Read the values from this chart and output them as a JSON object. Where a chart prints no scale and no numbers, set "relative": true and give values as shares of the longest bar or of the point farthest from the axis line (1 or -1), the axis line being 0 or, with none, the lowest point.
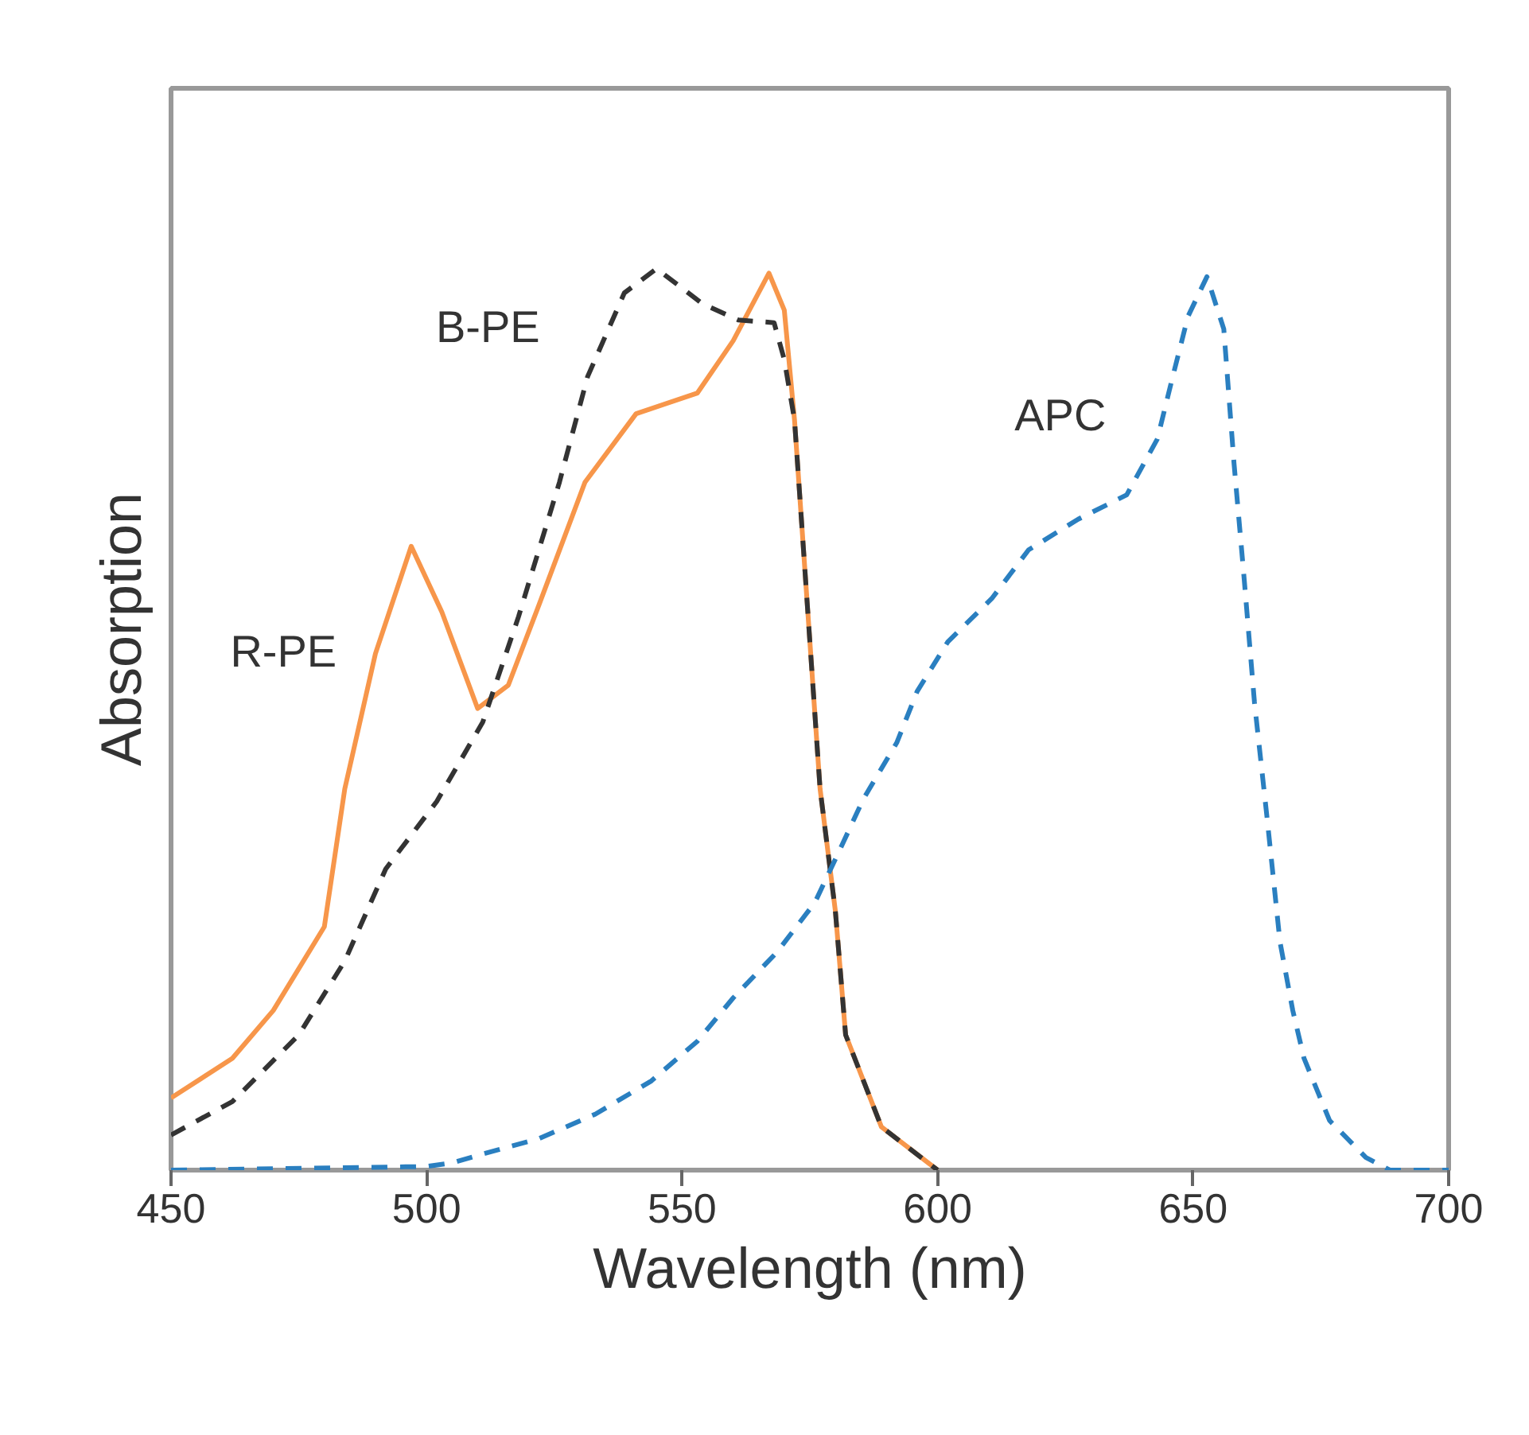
{
  "chart_data": {
    "type": "line",
    "xlabel": "Wavelength (nm)",
    "ylabel": "Absorption",
    "relative": true,
    "grid": false,
    "xlim": [
      450,
      700
    ],
    "xticks": [
      450,
      500,
      550,
      600,
      650,
      700
    ],
    "series": [
      {
        "name": "R-PE",
        "color": "#f7964a",
        "line_style": "solid",
        "x": [
          450,
          462,
          470,
          480,
          484,
          490,
          497,
          503,
          510,
          516,
          522,
          531,
          541,
          553,
          560,
          567,
          570,
          572,
          577,
          580,
          582,
          589,
          600
        ],
        "values": [
          0.08,
          0.124,
          0.177,
          0.27,
          0.423,
          0.573,
          0.692,
          0.619,
          0.512,
          0.538,
          0.627,
          0.763,
          0.839,
          0.862,
          0.92,
          0.995,
          0.954,
          0.832,
          0.423,
          0.287,
          0.15,
          0.048,
          0
        ]
      },
      {
        "name": "B-PE",
        "color": "#333333",
        "line_style": "dashed",
        "x": [
          450,
          462,
          475,
          484,
          492,
          502,
          511,
          518,
          526,
          531.5,
          538.7,
          545,
          554,
          561,
          568,
          570,
          572,
          577,
          580,
          582,
          589,
          600
        ],
        "values": [
          0.039,
          0.076,
          0.15,
          0.232,
          0.334,
          0.409,
          0.497,
          0.614,
          0.763,
          0.88,
          0.973,
          1,
          0.961,
          0.943,
          0.94,
          0.899,
          0.832,
          0.423,
          0.287,
          0.15,
          0.048,
          0
        ]
      },
      {
        "name": "APC",
        "color": "#2a7fc0",
        "line_style": "dashed",
        "x": [
          450,
          500,
          505,
          511,
          522,
          533,
          544,
          553,
          560,
          568.6,
          576,
          581,
          585.5,
          592,
          596,
          602,
          610.6,
          617.8,
          627.5,
          637,
          643,
          646,
          649,
          652.7,
          656,
          658,
          660,
          662,
          664.5,
          667,
          669.5,
          671.7,
          676.7,
          683.8,
          688.5,
          700
        ],
        "values": [
          0,
          0.004,
          0.008,
          0.018,
          0.035,
          0.062,
          0.099,
          0.143,
          0.191,
          0.242,
          0.297,
          0.357,
          0.412,
          0.474,
          0.531,
          0.586,
          0.634,
          0.688,
          0.722,
          0.749,
          0.811,
          0.88,
          0.947,
          0.991,
          0.933,
          0.784,
          0.655,
          0.519,
          0.389,
          0.253,
          0.177,
          0.124,
          0.055,
          0.014,
          0,
          0
        ]
      }
    ]
  }
}
